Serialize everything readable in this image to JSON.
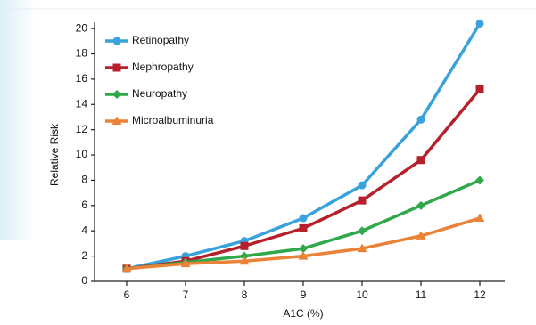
{
  "chart_data": {
    "type": "line",
    "xlabel": "A1C (%)",
    "ylabel": "Relative Risk",
    "x": [
      6,
      7,
      8,
      9,
      10,
      11,
      12
    ],
    "series": [
      {
        "name": "Retinopathy",
        "color": "#39a2dc",
        "marker": "circle",
        "values": [
          1,
          2,
          3.2,
          5,
          7.6,
          12.8,
          20.4
        ]
      },
      {
        "name": "Nephropathy",
        "color": "#b5202a",
        "marker": "square",
        "values": [
          1,
          1.6,
          2.8,
          4.2,
          6.4,
          9.6,
          15.2
        ]
      },
      {
        "name": "Neuropathy",
        "color": "#2fa84a",
        "marker": "diamond",
        "values": [
          1,
          1.5,
          2,
          2.6,
          4,
          6,
          8
        ]
      },
      {
        "name": "Microalbuminuria",
        "color": "#ea8338",
        "marker": "triangle",
        "values": [
          1,
          1.4,
          1.6,
          2,
          2.6,
          3.6,
          5
        ]
      }
    ],
    "xlim": [
      5.5,
      12.5
    ],
    "xticks": [
      6,
      7,
      8,
      9,
      10,
      11,
      12
    ],
    "ylim": [
      0,
      20.5
    ],
    "yticks": [
      0,
      2,
      4,
      6,
      8,
      10,
      12,
      14,
      16,
      18,
      20
    ],
    "grid": false,
    "legend": "top-left"
  }
}
